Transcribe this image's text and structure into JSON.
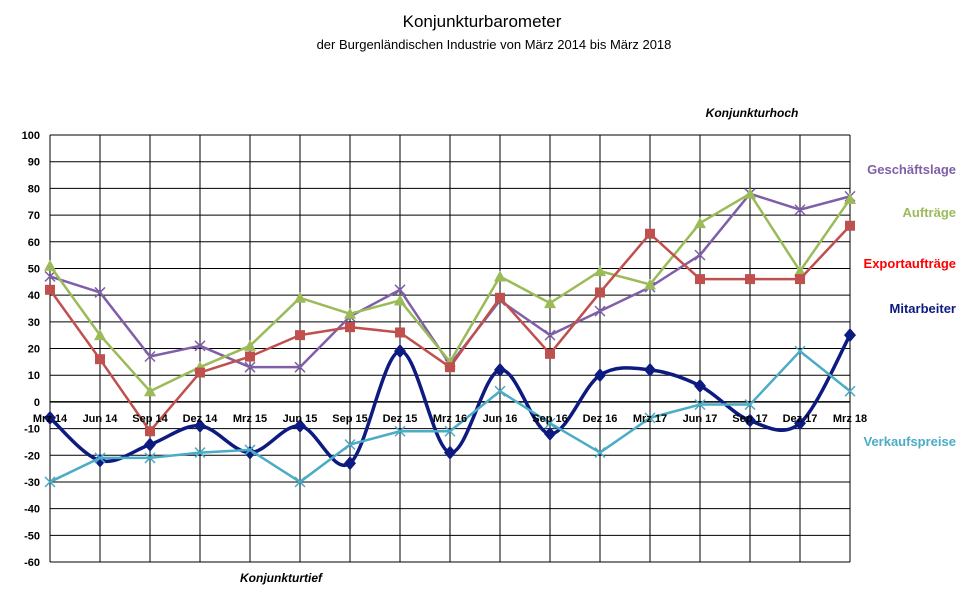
{
  "chart_data": {
    "type": "line",
    "title": "Konjunkturbarometer",
    "subtitle": "der Burgenländischen Industrie von März  2014 bis März 2018",
    "categories": [
      "Mrz 14",
      "Jun 14",
      "Sep 14",
      "Dez 14",
      "Mrz 15",
      "Jun 15",
      "Sep 15",
      "Dez 15",
      "Mrz 16",
      "Jun 16",
      "Sep 16",
      "Dez 16",
      "Mrz 17",
      "Jun 17",
      "Sep 17",
      "Dez 17",
      "Mrz 18"
    ],
    "ylim": [
      -60,
      100
    ],
    "yticks": [
      100,
      90,
      80,
      70,
      60,
      50,
      40,
      30,
      20,
      10,
      0,
      -10,
      -20,
      -30,
      -40,
      -50,
      -60
    ],
    "grid": true,
    "annotations": {
      "top": "Konjunkturhoch",
      "bottom": "Konjunkturtief"
    },
    "series": [
      {
        "name": "Geschäftslage",
        "color": "#7f5fa8",
        "marker": "x",
        "smooth": false,
        "values": [
          47,
          41,
          17,
          21,
          13,
          13,
          32,
          42,
          14,
          38,
          25,
          34,
          43,
          55,
          78,
          72,
          77
        ]
      },
      {
        "name": "Aufträge",
        "color": "#9bbb59",
        "marker": "triangle",
        "smooth": false,
        "values": [
          51,
          25,
          4,
          13,
          21,
          39,
          33,
          38,
          15,
          47,
          37,
          49,
          44,
          67,
          78,
          49,
          76
        ]
      },
      {
        "name": "Exportaufträge",
        "color": "#c0504d",
        "marker": "square",
        "smooth": false,
        "values": [
          42,
          16,
          -11,
          11,
          17,
          25,
          28,
          26,
          13,
          39,
          18,
          41,
          63,
          46,
          46,
          46,
          66
        ]
      },
      {
        "name": "Mitarbeiter",
        "color": "#0d1a80",
        "marker": "diamond",
        "smooth": true,
        "values": [
          -6,
          -22,
          -16,
          -9,
          -19,
          -9,
          -23,
          19,
          -19,
          12,
          -12,
          10,
          12,
          6,
          -7,
          -8,
          25
        ]
      },
      {
        "name": "Verkaufspreise",
        "color": "#4bacc6",
        "marker": "x",
        "smooth": false,
        "values": [
          -30,
          -21,
          -21,
          -19,
          -18,
          -30,
          -16,
          -11,
          -11,
          4,
          -8,
          -19,
          -6,
          -1,
          -1,
          19,
          4
        ]
      }
    ],
    "legend": [
      {
        "label": "Geschäftslage",
        "color": "#7f5fa8"
      },
      {
        "label": "Aufträge",
        "color": "#9bbb59"
      },
      {
        "label": "Exportaufträge",
        "color": "#ff0000"
      },
      {
        "label": "Mitarbeiter",
        "color": "#0d1a80"
      },
      {
        "label": "Verkaufspreise",
        "color": "#4bacc6"
      }
    ]
  }
}
